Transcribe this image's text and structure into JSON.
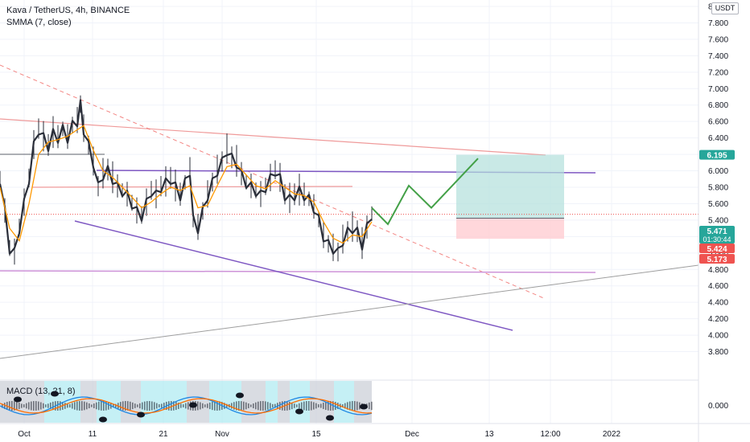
{
  "header": {
    "title": "Kava / TetherUS, 4h, BINANCE",
    "indicator": "SMMA (7, close)"
  },
  "currency_badge": "USDT",
  "macd_label": "MACD (13, 21, 8)",
  "colors": {
    "price_line_teal": "#26a69a",
    "price_line_red": "#ef5350",
    "channel_purple": "#7e57c2",
    "trend_grey": "#9e9e9e",
    "forecast_green": "#43a047",
    "smma_orange": "#ff9800",
    "target_fill": "#b2dfdb",
    "stop_fill": "#ffcdd2"
  },
  "chart_data": {
    "type": "line",
    "title": "Kava / TetherUS, 4h, BINANCE",
    "ylim": [
      3.6,
      8.0
    ],
    "yticks": [
      "8.000",
      "7.800",
      "7.600",
      "7.400",
      "7.200",
      "7.000",
      "6.800",
      "6.600",
      "6.400",
      "6.200",
      "6.000",
      "5.800",
      "5.600",
      "5.400",
      "5.200",
      "5.000",
      "4.800",
      "4.600",
      "4.400",
      "4.200",
      "4.000",
      "3.800"
    ],
    "xticks": [
      "Oct",
      "11",
      "21",
      "Nov",
      "15",
      "Dec",
      "13",
      "12:00",
      "2022"
    ],
    "price_labels": [
      {
        "value": 6.195,
        "text": "6.195",
        "color": "#26a69a"
      },
      {
        "value": 5.471,
        "text": "5.471",
        "sub": "01:30:44",
        "color": "#26a69a"
      },
      {
        "value": 5.424,
        "text": "5.424",
        "color": "#ef5350"
      },
      {
        "value": 5.173,
        "text": "5.173",
        "color": "#ef5350"
      }
    ],
    "series": [
      {
        "name": "Kava / TetherUS",
        "points": [
          [
            0,
            5.9
          ],
          [
            6,
            5.5
          ],
          [
            12,
            5.05
          ],
          [
            18,
            5.0
          ],
          [
            24,
            5.3
          ],
          [
            30,
            5.6
          ],
          [
            36,
            5.9
          ],
          [
            42,
            6.3
          ],
          [
            48,
            6.5
          ],
          [
            54,
            6.4
          ],
          [
            60,
            6.3
          ],
          [
            66,
            6.45
          ],
          [
            72,
            6.4
          ],
          [
            78,
            6.5
          ],
          [
            84,
            6.4
          ],
          [
            90,
            6.55
          ],
          [
            96,
            6.6
          ],
          [
            100,
            6.8
          ],
          [
            104,
            6.5
          ],
          [
            110,
            6.3
          ],
          [
            116,
            6.1
          ],
          [
            122,
            5.8
          ],
          [
            128,
            5.95
          ],
          [
            134,
            6.0
          ],
          [
            140,
            5.9
          ],
          [
            146,
            5.8
          ],
          [
            152,
            5.75
          ],
          [
            158,
            5.7
          ],
          [
            164,
            5.6
          ],
          [
            170,
            5.5
          ],
          [
            176,
            5.45
          ],
          [
            182,
            5.6
          ],
          [
            188,
            5.75
          ],
          [
            194,
            5.7
          ],
          [
            200,
            5.8
          ],
          [
            206,
            5.85
          ],
          [
            212,
            5.9
          ],
          [
            218,
            5.8
          ],
          [
            224,
            5.7
          ],
          [
            230,
            5.85
          ],
          [
            236,
            6.0
          ],
          [
            240,
            5.4
          ],
          [
            246,
            5.3
          ],
          [
            252,
            5.5
          ],
          [
            258,
            5.7
          ],
          [
            264,
            5.85
          ],
          [
            270,
            6.0
          ],
          [
            276,
            6.1
          ],
          [
            282,
            6.25
          ],
          [
            288,
            6.15
          ],
          [
            294,
            6.1
          ],
          [
            300,
            5.95
          ],
          [
            306,
            5.85
          ],
          [
            312,
            5.8
          ],
          [
            318,
            5.75
          ],
          [
            324,
            5.7
          ],
          [
            330,
            5.8
          ],
          [
            336,
            5.9
          ],
          [
            342,
            6.0
          ],
          [
            348,
            5.9
          ],
          [
            354,
            5.7
          ],
          [
            360,
            5.65
          ],
          [
            366,
            5.7
          ],
          [
            372,
            5.75
          ],
          [
            378,
            5.7
          ],
          [
            384,
            5.65
          ],
          [
            390,
            5.55
          ],
          [
            396,
            5.4
          ],
          [
            402,
            5.2
          ],
          [
            408,
            5.1
          ],
          [
            414,
            5.05
          ],
          [
            420,
            5.0
          ],
          [
            426,
            5.15
          ],
          [
            432,
            5.25
          ],
          [
            438,
            5.3
          ],
          [
            444,
            5.25
          ],
          [
            450,
            5.1
          ],
          [
            456,
            5.3
          ],
          [
            462,
            5.47
          ]
        ]
      },
      {
        "name": "SMMA (7, close)",
        "points": [
          [
            0,
            5.8
          ],
          [
            12,
            5.3
          ],
          [
            24,
            5.15
          ],
          [
            36,
            5.6
          ],
          [
            48,
            6.2
          ],
          [
            60,
            6.35
          ],
          [
            72,
            6.38
          ],
          [
            84,
            6.42
          ],
          [
            96,
            6.5
          ],
          [
            104,
            6.55
          ],
          [
            116,
            6.25
          ],
          [
            128,
            6.0
          ],
          [
            140,
            5.92
          ],
          [
            152,
            5.8
          ],
          [
            164,
            5.68
          ],
          [
            176,
            5.55
          ],
          [
            188,
            5.62
          ],
          [
            200,
            5.72
          ],
          [
            212,
            5.8
          ],
          [
            224,
            5.76
          ],
          [
            236,
            5.82
          ],
          [
            246,
            5.55
          ],
          [
            258,
            5.58
          ],
          [
            270,
            5.82
          ],
          [
            282,
            6.05
          ],
          [
            294,
            6.08
          ],
          [
            306,
            5.95
          ],
          [
            318,
            5.82
          ],
          [
            330,
            5.78
          ],
          [
            342,
            5.88
          ],
          [
            354,
            5.8
          ],
          [
            366,
            5.72
          ],
          [
            378,
            5.7
          ],
          [
            390,
            5.62
          ],
          [
            402,
            5.38
          ],
          [
            414,
            5.18
          ],
          [
            426,
            5.12
          ],
          [
            438,
            5.22
          ],
          [
            450,
            5.2
          ],
          [
            462,
            5.38
          ]
        ]
      }
    ],
    "forecast": {
      "name": "",
      "points": [
        [
          462,
          5.55
        ],
        [
          482,
          5.35
        ],
        [
          508,
          5.82
        ],
        [
          536,
          5.55
        ],
        [
          594,
          6.15
        ]
      ]
    },
    "position": {
      "entry": 5.424,
      "target": 6.195,
      "stop": 5.173
    }
  }
}
